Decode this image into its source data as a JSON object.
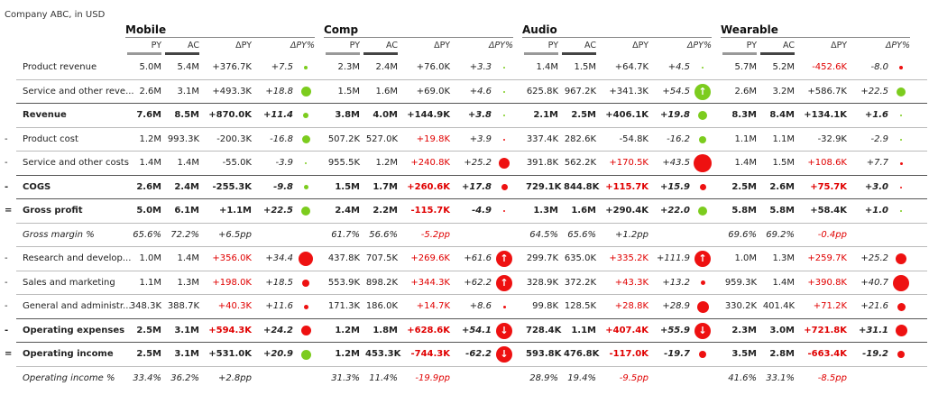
{
  "subtitle": "Company ABC, in USD",
  "columns": [
    "PY",
    "AC",
    "ΔPY",
    "ΔPY%"
  ],
  "categories": [
    {
      "name": "Mobile",
      "x": 139
    },
    {
      "name": "Comp",
      "x": 359
    },
    {
      "name": "Audio",
      "x": 579
    },
    {
      "name": "Wearable",
      "x": 799
    }
  ],
  "colors": {
    "green": "#7ccc1e",
    "red": "#ee1111",
    "negative_text": "#e00000"
  },
  "rows": [
    {
      "prefix": "",
      "label": "Product revenue",
      "style": "normal",
      "line": "thin",
      "cells": [
        {
          "py": "5.0M",
          "ac": "5.4M",
          "dpy": "+376.7K",
          "dpyneg": false,
          "pct": "+7.5",
          "marker": {
            "type": "dot",
            "color": "green",
            "size": 4
          }
        },
        {
          "py": "2.3M",
          "ac": "2.4M",
          "dpy": "+76.0K",
          "dpyneg": false,
          "pct": "+3.3",
          "marker": {
            "type": "dot",
            "color": "green",
            "size": 2
          }
        },
        {
          "py": "1.4M",
          "ac": "1.5M",
          "dpy": "+64.7K",
          "dpyneg": false,
          "pct": "+4.5",
          "marker": {
            "type": "dot",
            "color": "green",
            "size": 2
          }
        },
        {
          "py": "5.7M",
          "ac": "5.2M",
          "dpy": "-452.6K",
          "dpyneg": true,
          "pct": "-8.0",
          "marker": {
            "type": "dot",
            "color": "red",
            "size": 4
          }
        }
      ]
    },
    {
      "prefix": "",
      "label": "Service and other reve...",
      "style": "normal",
      "line": "thick",
      "cells": [
        {
          "py": "2.6M",
          "ac": "3.1M",
          "dpy": "+493.3K",
          "dpyneg": false,
          "pct": "+18.8",
          "marker": {
            "type": "dot",
            "color": "green",
            "size": 11
          }
        },
        {
          "py": "1.5M",
          "ac": "1.6M",
          "dpy": "+69.0K",
          "dpyneg": false,
          "pct": "+4.6",
          "marker": {
            "type": "dot",
            "color": "green",
            "size": 2
          }
        },
        {
          "py": "625.8K",
          "ac": "967.2K",
          "dpy": "+341.3K",
          "dpyneg": false,
          "pct": "+54.5",
          "marker": {
            "type": "arrow",
            "color": "green",
            "dir": "up",
            "glyph": "↑"
          }
        },
        {
          "py": "2.6M",
          "ac": "3.2M",
          "dpy": "+586.7K",
          "dpyneg": false,
          "pct": "+22.5",
          "marker": {
            "type": "dot",
            "color": "green",
            "size": 10
          }
        }
      ]
    },
    {
      "prefix": "",
      "label": "Revenue",
      "style": "bold",
      "line": "thin",
      "cells": [
        {
          "py": "7.6M",
          "ac": "8.5M",
          "dpy": "+870.0K",
          "dpyneg": false,
          "pct": "+11.4",
          "marker": {
            "type": "dot",
            "color": "green",
            "size": 6
          }
        },
        {
          "py": "3.8M",
          "ac": "4.0M",
          "dpy": "+144.9K",
          "dpyneg": false,
          "pct": "+3.8",
          "marker": {
            "type": "dot",
            "color": "green",
            "size": 2
          }
        },
        {
          "py": "2.1M",
          "ac": "2.5M",
          "dpy": "+406.1K",
          "dpyneg": false,
          "pct": "+19.8",
          "marker": {
            "type": "dot",
            "color": "green",
            "size": 10
          }
        },
        {
          "py": "8.3M",
          "ac": "8.4M",
          "dpy": "+134.1K",
          "dpyneg": false,
          "pct": "+1.6",
          "marker": {
            "type": "dot",
            "color": "green",
            "size": 2
          }
        }
      ]
    },
    {
      "prefix": "-",
      "label": "Product cost",
      "style": "normal",
      "line": "thin",
      "cells": [
        {
          "py": "1.2M",
          "ac": "993.3K",
          "dpy": "-200.3K",
          "dpyneg": false,
          "pct": "-16.8",
          "marker": {
            "type": "dot",
            "color": "green",
            "size": 9
          }
        },
        {
          "py": "507.2K",
          "ac": "527.0K",
          "dpy": "+19.8K",
          "dpyneg": true,
          "pct": "+3.9",
          "marker": {
            "type": "dot",
            "color": "red",
            "size": 2
          }
        },
        {
          "py": "337.4K",
          "ac": "282.6K",
          "dpy": "-54.8K",
          "dpyneg": false,
          "pct": "-16.2",
          "marker": {
            "type": "dot",
            "color": "green",
            "size": 8
          }
        },
        {
          "py": "1.1M",
          "ac": "1.1M",
          "dpy": "-32.9K",
          "dpyneg": false,
          "pct": "-2.9",
          "marker": {
            "type": "dot",
            "color": "green",
            "size": 2
          }
        }
      ]
    },
    {
      "prefix": "-",
      "label": "Service and other costs",
      "style": "normal",
      "line": "thick",
      "cells": [
        {
          "py": "1.4M",
          "ac": "1.4M",
          "dpy": "-55.0K",
          "dpyneg": false,
          "pct": "-3.9",
          "marker": {
            "type": "dot",
            "color": "green",
            "size": 2
          }
        },
        {
          "py": "955.5K",
          "ac": "1.2M",
          "dpy": "+240.8K",
          "dpyneg": true,
          "pct": "+25.2",
          "marker": {
            "type": "dot",
            "color": "red",
            "size": 12
          }
        },
        {
          "py": "391.8K",
          "ac": "562.2K",
          "dpy": "+170.5K",
          "dpyneg": true,
          "pct": "+43.5",
          "marker": {
            "type": "dot",
            "color": "red",
            "size": 20
          }
        },
        {
          "py": "1.4M",
          "ac": "1.5M",
          "dpy": "+108.6K",
          "dpyneg": true,
          "pct": "+7.7",
          "marker": {
            "type": "dot",
            "color": "red",
            "size": 3
          }
        }
      ]
    },
    {
      "prefix": "-",
      "label": "COGS",
      "style": "bold",
      "line": "thick",
      "cells": [
        {
          "py": "2.6M",
          "ac": "2.4M",
          "dpy": "-255.3K",
          "dpyneg": false,
          "pct": "-9.8",
          "marker": {
            "type": "dot",
            "color": "green",
            "size": 5
          }
        },
        {
          "py": "1.5M",
          "ac": "1.7M",
          "dpy": "+260.6K",
          "dpyneg": true,
          "pct": "+17.8",
          "marker": {
            "type": "dot",
            "color": "red",
            "size": 7
          }
        },
        {
          "py": "729.1K",
          "ac": "844.8K",
          "dpy": "+115.7K",
          "dpyneg": true,
          "pct": "+15.9",
          "marker": {
            "type": "dot",
            "color": "red",
            "size": 7
          }
        },
        {
          "py": "2.5M",
          "ac": "2.6M",
          "dpy": "+75.7K",
          "dpyneg": true,
          "pct": "+3.0",
          "marker": {
            "type": "dot",
            "color": "red",
            "size": 2
          }
        }
      ]
    },
    {
      "prefix": "=",
      "label": "Gross profit",
      "style": "bold",
      "line": "thin",
      "cells": [
        {
          "py": "5.0M",
          "ac": "6.1M",
          "dpy": "+1.1M",
          "dpyneg": false,
          "pct": "+22.5",
          "marker": {
            "type": "dot",
            "color": "green",
            "size": 10
          }
        },
        {
          "py": "2.4M",
          "ac": "2.2M",
          "dpy": "-115.7K",
          "dpyneg": true,
          "pct": "-4.9",
          "marker": {
            "type": "dot",
            "color": "red",
            "size": 2
          }
        },
        {
          "py": "1.3M",
          "ac": "1.6M",
          "dpy": "+290.4K",
          "dpyneg": false,
          "pct": "+22.0",
          "marker": {
            "type": "dot",
            "color": "green",
            "size": 10
          }
        },
        {
          "py": "5.8M",
          "ac": "5.8M",
          "dpy": "+58.4K",
          "dpyneg": false,
          "pct": "+1.0",
          "marker": {
            "type": "dot",
            "color": "green",
            "size": 2
          }
        }
      ]
    },
    {
      "prefix": "",
      "label": "Gross margin %",
      "style": "italic",
      "line": "thin",
      "cells": [
        {
          "py": "65.6%",
          "ac": "72.2%",
          "dpy": "+6.5pp",
          "dpyneg": false,
          "pct": "",
          "marker": null
        },
        {
          "py": "61.7%",
          "ac": "56.6%",
          "dpy": "-5.2pp",
          "dpyneg": true,
          "pct": "",
          "marker": null
        },
        {
          "py": "64.5%",
          "ac": "65.6%",
          "dpy": "+1.2pp",
          "dpyneg": false,
          "pct": "",
          "marker": null
        },
        {
          "py": "69.6%",
          "ac": "69.2%",
          "dpy": "-0.4pp",
          "dpyneg": true,
          "pct": "",
          "marker": null
        }
      ]
    },
    {
      "prefix": "-",
      "label": "Research and develop...",
      "style": "normal",
      "line": "thin",
      "cells": [
        {
          "py": "1.0M",
          "ac": "1.4M",
          "dpy": "+356.0K",
          "dpyneg": true,
          "pct": "+34.4",
          "marker": {
            "type": "dot",
            "color": "red",
            "size": 16
          }
        },
        {
          "py": "437.8K",
          "ac": "707.5K",
          "dpy": "+269.6K",
          "dpyneg": true,
          "pct": "+61.6",
          "marker": {
            "type": "arrow",
            "color": "red",
            "dir": "up",
            "glyph": "↑"
          }
        },
        {
          "py": "299.7K",
          "ac": "635.0K",
          "dpy": "+335.2K",
          "dpyneg": true,
          "pct": "+111.9",
          "marker": {
            "type": "arrow",
            "color": "red",
            "dir": "up",
            "glyph": "↑"
          }
        },
        {
          "py": "1.0M",
          "ac": "1.3M",
          "dpy": "+259.7K",
          "dpyneg": true,
          "pct": "+25.2",
          "marker": {
            "type": "dot",
            "color": "red",
            "size": 12
          }
        }
      ]
    },
    {
      "prefix": "-",
      "label": "Sales and marketing",
      "style": "normal",
      "line": "thin",
      "cells": [
        {
          "py": "1.1M",
          "ac": "1.3M",
          "dpy": "+198.0K",
          "dpyneg": true,
          "pct": "+18.5",
          "marker": {
            "type": "dot",
            "color": "red",
            "size": 8
          }
        },
        {
          "py": "553.9K",
          "ac": "898.2K",
          "dpy": "+344.3K",
          "dpyneg": true,
          "pct": "+62.2",
          "marker": {
            "type": "arrow",
            "color": "red",
            "dir": "up",
            "glyph": "↑"
          }
        },
        {
          "py": "328.9K",
          "ac": "372.2K",
          "dpy": "+43.3K",
          "dpyneg": true,
          "pct": "+13.2",
          "marker": {
            "type": "dot",
            "color": "red",
            "size": 5
          }
        },
        {
          "py": "959.3K",
          "ac": "1.4M",
          "dpy": "+390.8K",
          "dpyneg": true,
          "pct": "+40.7",
          "marker": {
            "type": "dot",
            "color": "red",
            "size": 18
          }
        }
      ]
    },
    {
      "prefix": "-",
      "label": "General and administr...",
      "style": "normal",
      "line": "thick",
      "cells": [
        {
          "py": "348.3K",
          "ac": "388.7K",
          "dpy": "+40.3K",
          "dpyneg": true,
          "pct": "+11.6",
          "marker": {
            "type": "dot",
            "color": "red",
            "size": 5
          }
        },
        {
          "py": "171.3K",
          "ac": "186.0K",
          "dpy": "+14.7K",
          "dpyneg": true,
          "pct": "+8.6",
          "marker": {
            "type": "dot",
            "color": "red",
            "size": 3
          }
        },
        {
          "py": "99.8K",
          "ac": "128.5K",
          "dpy": "+28.8K",
          "dpyneg": true,
          "pct": "+28.9",
          "marker": {
            "type": "dot",
            "color": "red",
            "size": 13
          }
        },
        {
          "py": "330.2K",
          "ac": "401.4K",
          "dpy": "+71.2K",
          "dpyneg": true,
          "pct": "+21.6",
          "marker": {
            "type": "dot",
            "color": "red",
            "size": 9
          }
        }
      ]
    },
    {
      "prefix": "-",
      "label": "Operating expenses",
      "style": "bold",
      "line": "thick",
      "cells": [
        {
          "py": "2.5M",
          "ac": "3.1M",
          "dpy": "+594.3K",
          "dpyneg": true,
          "pct": "+24.2",
          "marker": {
            "type": "dot",
            "color": "red",
            "size": 11
          }
        },
        {
          "py": "1.2M",
          "ac": "1.8M",
          "dpy": "+628.6K",
          "dpyneg": true,
          "pct": "+54.1",
          "marker": {
            "type": "arrow",
            "color": "red",
            "dir": "down",
            "glyph": "↓"
          }
        },
        {
          "py": "728.4K",
          "ac": "1.1M",
          "dpy": "+407.4K",
          "dpyneg": true,
          "pct": "+55.9",
          "marker": {
            "type": "arrow",
            "color": "red",
            "dir": "down",
            "glyph": "↓"
          }
        },
        {
          "py": "2.3M",
          "ac": "3.0M",
          "dpy": "+721.8K",
          "dpyneg": true,
          "pct": "+31.1",
          "marker": {
            "type": "dot",
            "color": "red",
            "size": 13
          }
        }
      ]
    },
    {
      "prefix": "=",
      "label": "Operating income",
      "style": "bold",
      "line": "thin",
      "cells": [
        {
          "py": "2.5M",
          "ac": "3.1M",
          "dpy": "+531.0K",
          "dpyneg": false,
          "pct": "+20.9",
          "marker": {
            "type": "dot",
            "color": "green",
            "size": 11
          }
        },
        {
          "py": "1.2M",
          "ac": "453.3K",
          "dpy": "-744.3K",
          "dpyneg": true,
          "pct": "-62.2",
          "marker": {
            "type": "arrow",
            "color": "red",
            "dir": "down",
            "glyph": "↓"
          }
        },
        {
          "py": "593.8K",
          "ac": "476.8K",
          "dpy": "-117.0K",
          "dpyneg": true,
          "pct": "-19.7",
          "marker": {
            "type": "dot",
            "color": "red",
            "size": 8
          }
        },
        {
          "py": "3.5M",
          "ac": "2.8M",
          "dpy": "-663.4K",
          "dpyneg": true,
          "pct": "-19.2",
          "marker": {
            "type": "dot",
            "color": "red",
            "size": 8
          }
        }
      ]
    },
    {
      "prefix": "",
      "label": "Operating income %",
      "style": "italic",
      "line": "none",
      "cells": [
        {
          "py": "33.4%",
          "ac": "36.2%",
          "dpy": "+2.8pp",
          "dpyneg": false,
          "pct": "",
          "marker": null
        },
        {
          "py": "31.3%",
          "ac": "11.4%",
          "dpy": "-19.9pp",
          "dpyneg": true,
          "pct": "",
          "marker": null
        },
        {
          "py": "28.9%",
          "ac": "19.4%",
          "dpy": "-9.5pp",
          "dpyneg": true,
          "pct": "",
          "marker": null
        },
        {
          "py": "41.6%",
          "ac": "33.1%",
          "dpy": "-8.5pp",
          "dpyneg": true,
          "pct": "",
          "marker": null
        }
      ]
    }
  ]
}
